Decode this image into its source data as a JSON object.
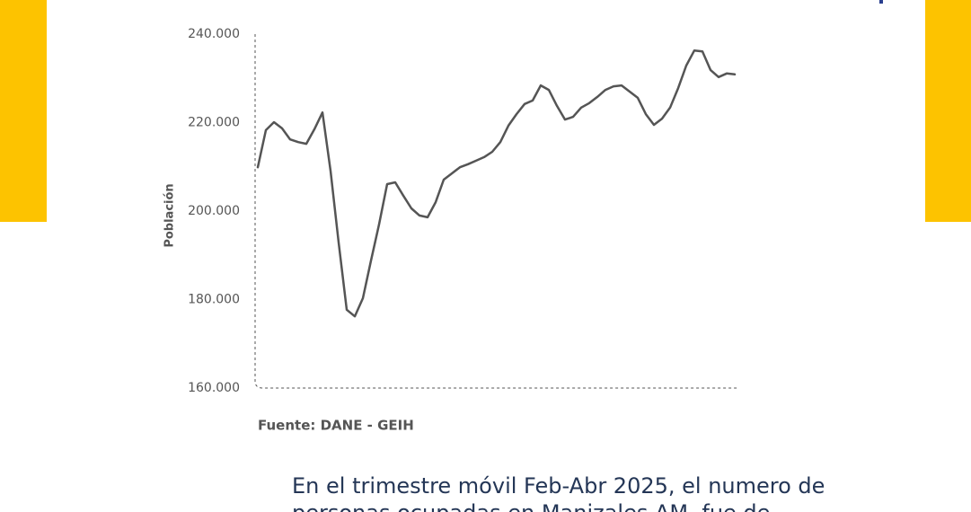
{
  "chart_data": {
    "type": "line",
    "ylabel": "Población",
    "source": "Fuente: DANE - GEIH",
    "categories": [
      null,
      null,
      null,
      null,
      null,
      null,
      null,
      null,
      null,
      null,
      null,
      null,
      null,
      null,
      null,
      null,
      null,
      null,
      null,
      null,
      null,
      null,
      null,
      null,
      null,
      null,
      null,
      null,
      null,
      null,
      null,
      null,
      null,
      null,
      null,
      null,
      null,
      null,
      null,
      null,
      null,
      null,
      null,
      null,
      null,
      null,
      null,
      null,
      null,
      null,
      null,
      null,
      null,
      null,
      null,
      null,
      null,
      null,
      null,
      null
    ],
    "series": [
      {
        "color": "#555555",
        "values": [
          209900,
          218300,
          220100,
          218700,
          216200,
          215600,
          215200,
          218500,
          222300,
          209100,
          192900,
          177700,
          176200,
          180300,
          188800,
          197000,
          206100,
          206500,
          203500,
          200600,
          199000,
          198600,
          202000,
          207100,
          208500,
          209900,
          210600,
          211400,
          212200,
          213400,
          215600,
          219300,
          221900,
          224200,
          225000,
          228400,
          227400,
          223800,
          220700,
          221300,
          223400,
          224400,
          225800,
          227400,
          228200,
          228400,
          227000,
          225600,
          221900,
          219500,
          220900,
          223400,
          227800,
          232900,
          236300,
          236100,
          231900,
          230300,
          231100,
          230900
        ]
      }
    ],
    "ylim": [
      160000,
      240000
    ],
    "yticks": [
      {
        "value": 160000,
        "label": "160.000"
      },
      {
        "value": 180000,
        "label": "180.000"
      },
      {
        "value": 200000,
        "label": "200.000"
      },
      {
        "value": 220000,
        "label": "220.000"
      },
      {
        "value": 240000,
        "label": "240.000"
      }
    ],
    "grid": false
  },
  "text": {
    "lines": [
      "En el trimestre móvil Feb-Abr 2025, el numero de",
      "personas ocupadas en Manizales AM, fue de"
    ]
  }
}
